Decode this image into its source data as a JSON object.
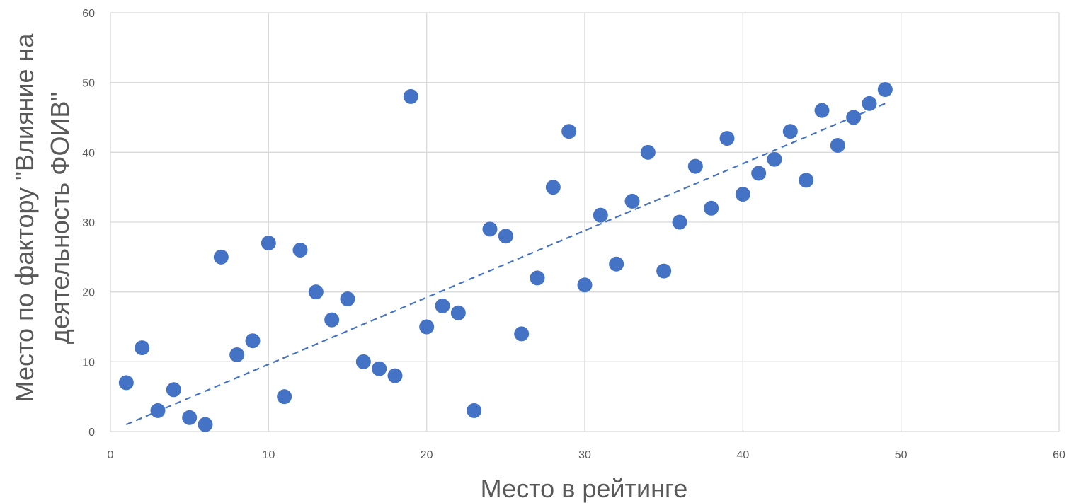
{
  "chart_data": {
    "type": "scatter",
    "title": "",
    "xlabel": "Место в рейтинге",
    "ylabel_lines": [
      "Место по фактору \"Влияние на",
      "деятельность ФОИВ\""
    ],
    "xlim": [
      0,
      60
    ],
    "ylim": [
      0,
      60
    ],
    "x_ticks": [
      0,
      10,
      20,
      30,
      40,
      50,
      60
    ],
    "y_ticks": [
      0,
      10,
      20,
      30,
      40,
      50,
      60
    ],
    "grid": true,
    "legend": "none",
    "series": [
      {
        "color": "#4472C4",
        "points": [
          [
            1,
            7
          ],
          [
            2,
            12
          ],
          [
            3,
            3
          ],
          [
            4,
            6
          ],
          [
            5,
            2
          ],
          [
            6,
            1
          ],
          [
            7,
            25
          ],
          [
            8,
            11
          ],
          [
            9,
            13
          ],
          [
            10,
            27
          ],
          [
            11,
            5
          ],
          [
            12,
            26
          ],
          [
            13,
            20
          ],
          [
            14,
            16
          ],
          [
            15,
            19
          ],
          [
            16,
            10
          ],
          [
            17,
            9
          ],
          [
            18,
            8
          ],
          [
            19,
            48
          ],
          [
            20,
            15
          ],
          [
            21,
            18
          ],
          [
            22,
            17
          ],
          [
            23,
            3
          ],
          [
            24,
            29
          ],
          [
            25,
            28
          ],
          [
            26,
            14
          ],
          [
            27,
            22
          ],
          [
            28,
            35
          ],
          [
            29,
            43
          ],
          [
            30,
            21
          ],
          [
            31,
            31
          ],
          [
            32,
            24
          ],
          [
            33,
            33
          ],
          [
            34,
            40
          ],
          [
            35,
            23
          ],
          [
            36,
            30
          ],
          [
            37,
            38
          ],
          [
            38,
            32
          ],
          [
            39,
            42
          ],
          [
            40,
            34
          ],
          [
            41,
            37
          ],
          [
            42,
            39
          ],
          [
            43,
            43
          ],
          [
            44,
            36
          ],
          [
            45,
            46
          ],
          [
            46,
            41
          ],
          [
            47,
            45
          ],
          [
            48,
            47
          ],
          [
            49,
            49
          ]
        ]
      }
    ],
    "trendline": {
      "type": "linear",
      "style": "dashed",
      "color": "#4472C4",
      "from": [
        1,
        1
      ],
      "to": [
        49,
        47
      ]
    },
    "colors": {
      "grid": "#D9D9D9",
      "text": "#595959"
    }
  }
}
